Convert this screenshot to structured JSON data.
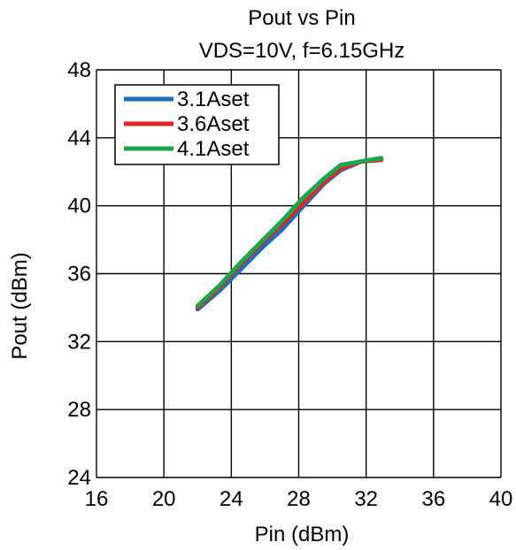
{
  "chart_data": {
    "type": "line",
    "title": "Pout vs Pin",
    "subtitle": "VDS=10V, f=6.15GHz",
    "xlabel": "Pin (dBm)",
    "ylabel": "Pout (dBm)",
    "xlim": [
      16,
      40
    ],
    "ylim": [
      24,
      48
    ],
    "xticks": [
      16,
      20,
      24,
      28,
      32,
      36,
      40
    ],
    "yticks": [
      24,
      28,
      32,
      36,
      40,
      44,
      48
    ],
    "grid": true,
    "legend_position": "top-left",
    "series": [
      {
        "name": "3.1Aset",
        "color": "#1f6fc0",
        "x": [
          22.0,
          23.3,
          24.6,
          25.9,
          27.0,
          28.2,
          29.5,
          30.5,
          31.7,
          32.9
        ],
        "y": [
          33.9,
          35.0,
          36.3,
          37.6,
          38.6,
          39.9,
          41.3,
          42.1,
          42.6,
          42.8
        ]
      },
      {
        "name": "3.6Aset",
        "color": "#e8231f",
        "x": [
          22.0,
          23.3,
          24.6,
          25.9,
          27.0,
          28.2,
          29.5,
          30.5,
          31.7,
          32.9
        ],
        "y": [
          34.0,
          35.2,
          36.6,
          37.9,
          38.9,
          40.1,
          41.4,
          42.2,
          42.6,
          42.7
        ]
      },
      {
        "name": "4.1Aset",
        "color": "#1ca64c",
        "x": [
          22.0,
          23.3,
          24.6,
          25.9,
          27.0,
          28.2,
          29.5,
          30.5,
          31.7,
          32.9
        ],
        "y": [
          34.1,
          35.3,
          36.7,
          38.0,
          39.1,
          40.4,
          41.6,
          42.4,
          42.6,
          42.8
        ]
      }
    ]
  }
}
